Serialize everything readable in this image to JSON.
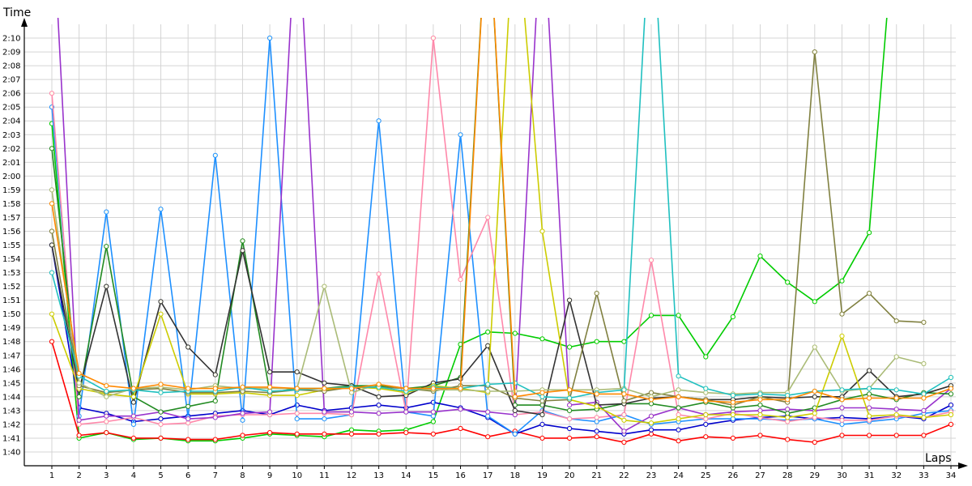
{
  "chart_data": {
    "type": "line",
    "xlabel": "Laps",
    "ylabel": "Time",
    "xlim": [
      1,
      34
    ],
    "ylim": [
      "1:39",
      "2:11"
    ],
    "x": [
      1,
      2,
      3,
      4,
      5,
      6,
      7,
      8,
      9,
      10,
      11,
      12,
      13,
      14,
      15,
      16,
      17,
      18,
      19,
      20,
      21,
      22,
      23,
      24,
      25,
      26,
      27,
      28,
      29,
      30,
      31,
      32,
      33,
      34
    ],
    "x_ticks": [
      "1",
      "2",
      "3",
      "4",
      "5",
      "6",
      "7",
      "8",
      "9",
      "10",
      "11",
      "12",
      "13",
      "14",
      "15",
      "16",
      "17",
      "18",
      "19",
      "20",
      "21",
      "22",
      "23",
      "24",
      "25",
      "26",
      "27",
      "28",
      "29",
      "30",
      "31",
      "32",
      "33",
      "34"
    ],
    "y_ticks": [
      "1:40",
      "1:41",
      "1:42",
      "1:43",
      "1:44",
      "1:45",
      "1:46",
      "1:47",
      "1:48",
      "1:49",
      "1:50",
      "1:51",
      "1:52",
      "1:53",
      "1:54",
      "1:55",
      "1:56",
      "1:57",
      "1:58",
      "1:59",
      "2:00",
      "2:01",
      "2:02",
      "2:03",
      "2:04",
      "2:05",
      "2:06",
      "2:07",
      "2:08",
      "2:09",
      "2:10"
    ],
    "grid": true,
    "legend": "none",
    "series": [
      {
        "color": "#00cc00",
        "values": [
          123.8,
          101.0,
          101.4,
          100.9,
          101.0,
          100.8,
          100.8,
          101.0,
          101.3,
          101.2,
          101.1,
          101.6,
          101.5,
          101.6,
          102.2,
          107.8,
          108.7,
          108.6,
          108.2,
          107.6,
          108.0,
          108.0,
          109.9,
          109.9,
          106.9,
          109.8,
          114.2,
          112.3,
          110.9,
          112.4,
          115.9,
          140.0,
          null,
          null
        ]
      },
      {
        "color": "#ff0000",
        "values": [
          108.0,
          101.2,
          101.4,
          101.0,
          101.0,
          100.9,
          100.9,
          101.2,
          101.4,
          101.3,
          101.3,
          101.3,
          101.3,
          101.4,
          101.3,
          101.7,
          101.1,
          101.5,
          101.0,
          101.0,
          101.1,
          100.7,
          101.3,
          100.8,
          101.1,
          101.0,
          101.2,
          100.9,
          100.7,
          101.2,
          101.2,
          101.2,
          101.2,
          102.0
        ]
      },
      {
        "color": "#0000cc",
        "values": [
          115.0,
          103.2,
          102.8,
          102.2,
          102.4,
          102.6,
          102.8,
          103.0,
          102.7,
          103.4,
          103.0,
          103.2,
          103.4,
          103.2,
          103.6,
          103.2,
          102.5,
          101.3,
          102.0,
          101.7,
          101.5,
          101.3,
          101.6,
          101.6,
          102.0,
          102.3,
          102.5,
          102.6,
          102.4,
          102.5,
          102.4,
          102.6,
          102.4,
          103.4
        ]
      },
      {
        "color": "#1e90ff",
        "values": [
          125.0,
          102.6,
          117.4,
          102.0,
          117.6,
          102.5,
          121.5,
          102.3,
          130.0,
          102.4,
          102.4,
          102.7,
          124.0,
          102.9,
          102.6,
          123.0,
          102.6,
          101.3,
          103.0,
          102.4,
          102.2,
          102.7,
          102.0,
          102.2,
          102.4,
          102.4,
          102.4,
          102.3,
          102.4,
          102.0,
          102.2,
          102.4,
          102.8,
          103.0
        ]
      },
      {
        "color": "#ff88aa",
        "values": [
          126.0,
          102.0,
          102.2,
          102.5,
          102.0,
          102.1,
          102.6,
          102.7,
          102.7,
          102.8,
          102.8,
          102.7,
          112.9,
          102.9,
          130.0,
          112.5,
          117.0,
          102.7,
          102.9,
          102.4,
          102.5,
          102.7,
          113.9,
          102.7,
          102.4,
          102.8,
          102.5,
          102.2,
          102.5,
          102.3,
          102.3,
          102.6,
          102.5,
          102.9
        ]
      },
      {
        "color": "#9933cc",
        "values": [
          140.0,
          102.3,
          102.6,
          102.6,
          102.9,
          102.4,
          102.5,
          102.8,
          102.9,
          140.0,
          102.9,
          102.9,
          102.8,
          102.9,
          102.9,
          103.1,
          102.9,
          102.7,
          140.0,
          103.4,
          103.6,
          101.5,
          102.6,
          103.2,
          102.7,
          102.9,
          103.0,
          103.1,
          103.0,
          103.2,
          103.2,
          103.1,
          103.0,
          104.6
        ]
      },
      {
        "color": "#228b22",
        "values": [
          122.0,
          104.0,
          114.9,
          104.0,
          102.9,
          103.3,
          103.7,
          115.3,
          104.3,
          104.6,
          104.6,
          104.8,
          104.8,
          104.6,
          104.8,
          105.4,
          140.0,
          103.4,
          103.4,
          103.0,
          103.1,
          103.5,
          103.5,
          103.2,
          103.6,
          103.2,
          103.4,
          102.8,
          103.2,
          103.8,
          104.2,
          103.8,
          104.3,
          104.2
        ]
      },
      {
        "color": "#333333",
        "values": [
          115.0,
          104.5,
          112.0,
          103.6,
          110.9,
          107.6,
          105.6,
          114.6,
          105.8,
          105.8,
          105.0,
          104.8,
          104.0,
          104.1,
          105.0,
          105.3,
          107.7,
          103.0,
          102.7,
          111.0,
          103.4,
          103.5,
          103.9,
          104.0,
          103.8,
          103.8,
          104.0,
          103.9,
          104.0,
          104.0,
          105.9,
          104.0,
          104.2,
          104.8
        ]
      },
      {
        "color": "#cccc00",
        "values": [
          110.0,
          104.6,
          104.2,
          104.0,
          110.0,
          104.2,
          104.2,
          104.3,
          104.1,
          104.1,
          104.5,
          104.7,
          104.6,
          104.3,
          104.8,
          104.6,
          104.3,
          140.0,
          116.0,
          103.8,
          103.3,
          102.3,
          102.1,
          102.4,
          102.7,
          102.7,
          102.7,
          102.5,
          102.8,
          108.4,
          102.6,
          102.7,
          102.5,
          102.7
        ]
      },
      {
        "color": "#808040",
        "values": [
          116.0,
          104.8,
          104.3,
          104.5,
          104.6,
          104.3,
          104.3,
          104.4,
          104.3,
          104.5,
          104.4,
          104.7,
          104.7,
          104.6,
          104.4,
          104.8,
          104.8,
          103.9,
          103.7,
          103.8,
          111.5,
          103.7,
          104.3,
          104.0,
          103.8,
          103.4,
          104.0,
          103.6,
          129.0,
          110.0,
          111.5,
          109.5,
          109.4,
          null
        ]
      },
      {
        "color": "#aabb77",
        "values": [
          119.0,
          105.0,
          104.0,
          104.6,
          104.7,
          104.5,
          104.8,
          104.6,
          104.6,
          104.6,
          112.0,
          104.3,
          104.9,
          104.6,
          104.5,
          104.5,
          104.4,
          104.4,
          104.5,
          104.5,
          104.5,
          104.6,
          104.0,
          104.5,
          104.3,
          104.2,
          104.3,
          104.3,
          107.6,
          104.4,
          104.6,
          106.9,
          106.4,
          null
        ]
      },
      {
        "color": "#20c0c0",
        "values": [
          113.0,
          105.5,
          104.4,
          104.5,
          104.3,
          104.4,
          104.4,
          104.7,
          104.4,
          104.5,
          104.6,
          104.7,
          104.7,
          104.4,
          104.7,
          104.6,
          104.9,
          105.0,
          104.0,
          103.9,
          104.3,
          104.5,
          140.0,
          105.5,
          104.6,
          104.1,
          104.2,
          104.1,
          104.4,
          104.5,
          104.6,
          104.5,
          104.2,
          105.4
        ]
      },
      {
        "color": "#ff8800",
        "values": [
          118.0,
          105.7,
          104.8,
          104.6,
          104.9,
          104.6,
          104.6,
          104.7,
          104.7,
          104.6,
          104.6,
          104.6,
          104.9,
          104.6,
          104.6,
          104.6,
          140.0,
          104.0,
          104.3,
          104.5,
          104.2,
          104.2,
          103.8,
          104.0,
          103.7,
          103.6,
          103.8,
          103.8,
          104.4,
          103.8,
          103.9,
          103.9,
          103.9,
          104.6
        ]
      }
    ]
  }
}
